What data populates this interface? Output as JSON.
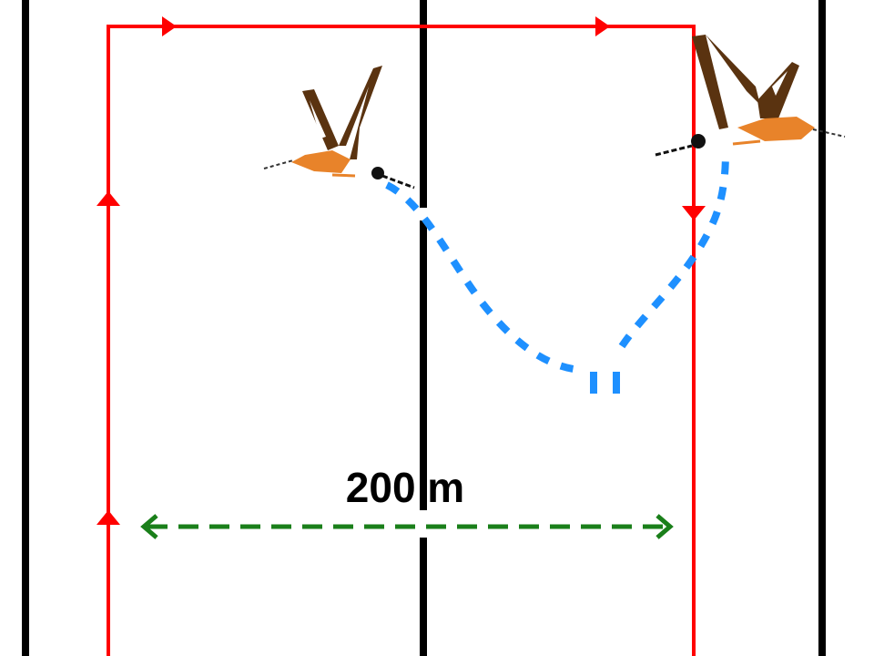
{
  "distance_label": "200 m",
  "colors": {
    "boundary_lines": "#000000",
    "transect_path": "#ff0000",
    "flight_path": "#1e90ff",
    "distance_arrow": "#1a7f1a",
    "bird_wings": "#5a3310",
    "bird_body": "#e8832a"
  },
  "icons": [
    "bird-left-icon",
    "bird-right-icon"
  ]
}
